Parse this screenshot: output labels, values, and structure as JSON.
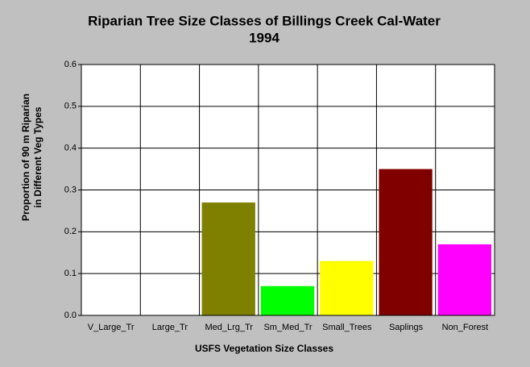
{
  "chart_data": {
    "type": "bar",
    "title": [
      "Riparian Tree Size Classes of Billings Creek Cal-Water",
      "1994"
    ],
    "x_label": "USFS Vegetation Size Classes",
    "y_label": [
      "Proportion of 90 m Riparian",
      "in Different Veg Types"
    ],
    "categories": [
      "V_Large_Tr",
      "Large_Tr",
      "Med_Lrg_Tr",
      "Sm_Med_Tr",
      "Small_Trees",
      "Saplings",
      "Non_Forest"
    ],
    "values": [
      0,
      0,
      0.27,
      0.07,
      0.13,
      0.35,
      0.17
    ],
    "colors": [
      "#0000ff",
      "#008080",
      "#808000",
      "#00ff00",
      "#ffff00",
      "#800000",
      "#ff00ff"
    ],
    "ylim": [
      0,
      0.6
    ],
    "yticks": [
      {
        "value": 0,
        "label": "0.0"
      },
      0.1,
      0.2,
      0.3,
      0.4,
      0.5,
      0.6
    ],
    "grid": true
  }
}
